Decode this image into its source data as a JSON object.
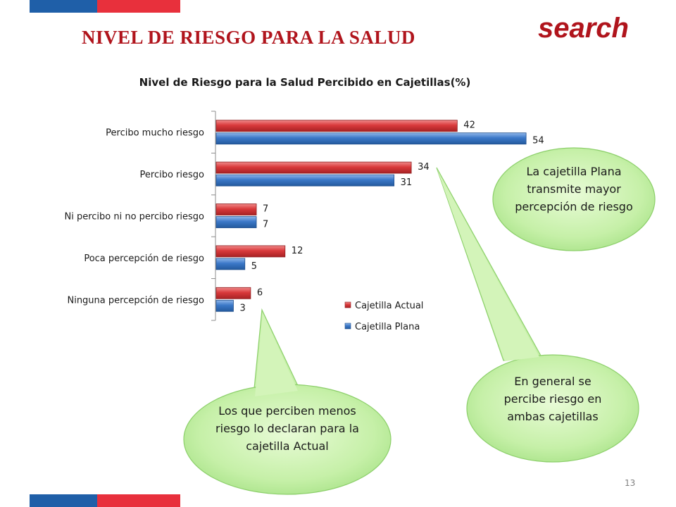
{
  "header": {
    "title": "NIVEL DE RIESGO PARA LA SALUD",
    "search_label": "search"
  },
  "page_number": "13",
  "colors": {
    "brand_red": "#b0141c",
    "flag_blue": "#1f5fa8",
    "flag_red": "#e8303c",
    "series_actual": "#d9393b",
    "series_plana": "#3b78c8",
    "callout_fill": "#c6f0a8"
  },
  "chart_data": {
    "type": "bar",
    "orientation": "horizontal",
    "title": "Nivel de Riesgo para la Salud Percibido en Cajetillas(%)",
    "categories": [
      "Percibo mucho riesgo",
      "Percibo riesgo",
      "Ni percibo ni no percibo riesgo",
      "Poca percepción de riesgo",
      "Ninguna percepción de riesgo"
    ],
    "series": [
      {
        "name": "Cajetilla Actual",
        "values": [
          42,
          34,
          7,
          12,
          6
        ],
        "color": "#d9393b"
      },
      {
        "name": "Cajetilla Plana",
        "values": [
          54,
          31,
          7,
          5,
          3
        ],
        "color": "#3b78c8"
      }
    ],
    "xlim": [
      0,
      60
    ],
    "grid": false,
    "legend_position": "bottom-right",
    "data_labels": true
  },
  "callouts": [
    {
      "text": "La cajetilla Plana transmite mayor percepción de riesgo"
    },
    {
      "text": "En general se percibe riesgo en ambas cajetillas"
    },
    {
      "text": "Los que perciben menos riesgo lo declaran para la cajetilla Actual"
    }
  ]
}
